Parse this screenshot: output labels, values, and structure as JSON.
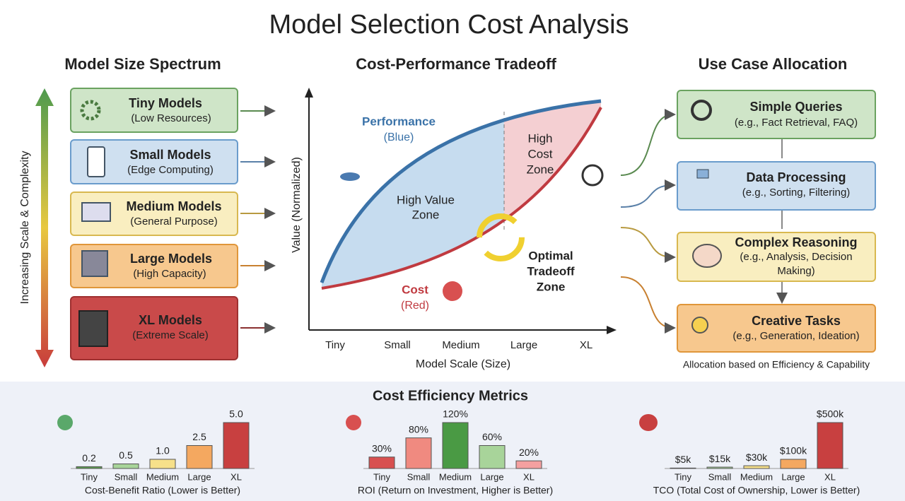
{
  "title": "Model Selection Cost Analysis",
  "spectrum": {
    "title": "Model Size Spectrum",
    "axis_label": "Increasing Scale & Complexity",
    "models": [
      {
        "name": "Tiny Models",
        "detail": "(Low Resources)"
      },
      {
        "name": "Small Models",
        "detail": "(Edge Computing)"
      },
      {
        "name": "Medium Models",
        "detail": "(General Purpose)"
      },
      {
        "name": "Large Models",
        "detail": "(High Capacity)"
      },
      {
        "name": "XL Models",
        "detail": "(Extreme Scale)"
      }
    ]
  },
  "tradeoff": {
    "title": "Cost-Performance Tradeoff",
    "y_label": "Value (Normalized)",
    "x_label": "Model Scale (Size)",
    "categories": [
      "Tiny",
      "Small",
      "Medium",
      "Large",
      "XL"
    ],
    "performance_label": "Performance",
    "performance_note": "(Blue)",
    "cost_label": "Cost",
    "cost_note": "(Red)",
    "high_value_zone": [
      "High Value",
      "Zone"
    ],
    "high_cost_zone": [
      "High",
      "Cost",
      "Zone"
    ],
    "optimal_zone": [
      "Optimal",
      "Tradeoff",
      "Zone"
    ]
  },
  "use_cases": {
    "title": "Use Case Allocation",
    "caption": "Allocation based on Efficiency & Capability",
    "items": [
      {
        "name": "Simple Queries",
        "detail": [
          "(e.g., Fact Retrieval, FAQ)"
        ]
      },
      {
        "name": "Data Processing",
        "detail": [
          "(e.g., Sorting, Filtering)"
        ]
      },
      {
        "name": "Complex Reasoning",
        "detail": [
          "(e.g., Analysis, Decision",
          "Making)"
        ]
      },
      {
        "name": "Creative Tasks",
        "detail": [
          "(e.g., Generation, Ideation)"
        ]
      }
    ]
  },
  "metrics_title": "Cost Efficiency Metrics",
  "chart_data": [
    {
      "type": "bar",
      "x_label": "Cost-Benefit Ratio (Lower is Better)",
      "categories": [
        "Tiny",
        "Small",
        "Medium",
        "Large",
        "XL"
      ],
      "values": [
        0.2,
        0.5,
        1.0,
        2.5,
        5.0
      ],
      "value_labels": [
        "0.2",
        "0.5",
        "1.0",
        "2.5",
        "5.0"
      ],
      "colors": [
        "#5a9a50",
        "#a8d49a",
        "#f6e08a",
        "#f4a860",
        "#c84040"
      ]
    },
    {
      "type": "bar",
      "x_label": "ROI (Return on Investment, Higher is Better)",
      "categories": [
        "Tiny",
        "Small",
        "Medium",
        "Large",
        "XL"
      ],
      "values": [
        30,
        80,
        120,
        60,
        20
      ],
      "value_labels": [
        "30%",
        "80%",
        "120%",
        "60%",
        "20%"
      ],
      "colors": [
        "#d85050",
        "#f08a80",
        "#4a9a44",
        "#a8d49a",
        "#f4a0a0"
      ]
    },
    {
      "type": "bar",
      "x_label": "TCO (Total Cost of Ownership, Lower is Better)",
      "categories": [
        "Tiny",
        "Small",
        "Medium",
        "Large",
        "XL"
      ],
      "values": [
        5000,
        15000,
        30000,
        100000,
        500000
      ],
      "value_labels": [
        "$5k",
        "$15k",
        "$30k",
        "$100k",
        "$500k"
      ],
      "colors": [
        "#5a9a50",
        "#a8d49a",
        "#f6e08a",
        "#f4a860",
        "#c84040"
      ]
    }
  ]
}
